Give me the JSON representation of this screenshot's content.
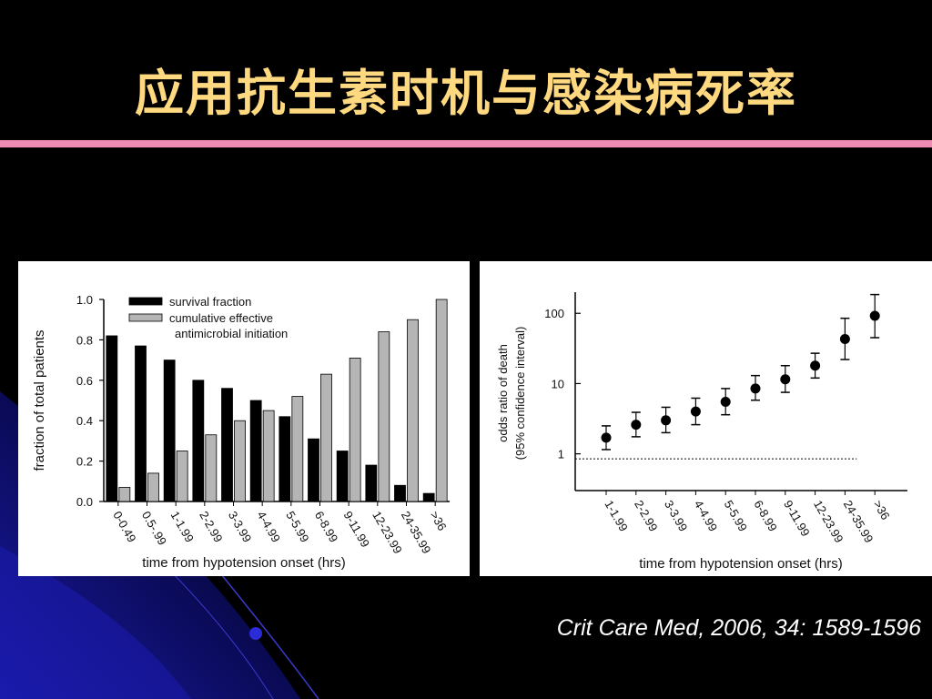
{
  "slide": {
    "title": "应用抗生素时机与感染病死率",
    "citation": "Crit Care Med, 2006, 34: 1589-1596",
    "colors": {
      "title": "#ffd980",
      "bar": "#f08cb4",
      "background": "#000000"
    }
  },
  "chart_data": [
    {
      "type": "bar",
      "xlabel": "time from hypotension onset (hrs)",
      "ylabel": "fraction of total patients",
      "ylim": [
        0,
        1.0
      ],
      "yticks": [
        "0.0",
        "0.2",
        "0.4",
        "0.6",
        "0.8",
        "1.0"
      ],
      "grid": false,
      "legend_position": "top-left",
      "categories": [
        "0-0.49",
        "0.5-.99",
        "1-1.99",
        "2-2.99",
        "3-3.99",
        "4-4.99",
        "5-5.99",
        "6-8.99",
        "9-11.99",
        "12-23.99",
        "24-35.99",
        ">36"
      ],
      "series": [
        {
          "name": "survival fraction",
          "color": "#000000",
          "values": [
            0.82,
            0.77,
            0.7,
            0.6,
            0.56,
            0.5,
            0.42,
            0.31,
            0.25,
            0.18,
            0.08,
            0.04
          ]
        },
        {
          "name": "cumulative effective antimicrobial initiation",
          "color": "#b5b5b5",
          "values": [
            0.07,
            0.14,
            0.25,
            0.33,
            0.4,
            0.45,
            0.52,
            0.63,
            0.71,
            0.84,
            0.9,
            1.0
          ]
        }
      ]
    },
    {
      "type": "scatter",
      "xlabel": "time from hypotension onset (hrs)",
      "ylabel_line1": "odds ratio of death",
      "ylabel_line2": "(95% confidence interval)",
      "y_scale": "log",
      "ylim": [
        0.3,
        200
      ],
      "yticks": [
        "1",
        "10",
        "100"
      ],
      "reference_line": 0.85,
      "categories": [
        "1-1.99",
        "2-2.99",
        "3-3.99",
        "4-4.99",
        "5-5.99",
        "6-8.99",
        "9-11.99",
        "12-23.99",
        "24-35.99",
        ">36"
      ],
      "values": [
        1.7,
        2.6,
        3.0,
        4.0,
        5.5,
        8.5,
        11.5,
        18,
        43,
        92
      ],
      "ci_low": [
        1.15,
        1.75,
        2.0,
        2.6,
        3.6,
        5.8,
        7.5,
        12,
        22,
        45
      ],
      "ci_high": [
        2.5,
        3.9,
        4.6,
        6.2,
        8.5,
        13,
        18,
        27,
        85,
        185
      ]
    }
  ]
}
